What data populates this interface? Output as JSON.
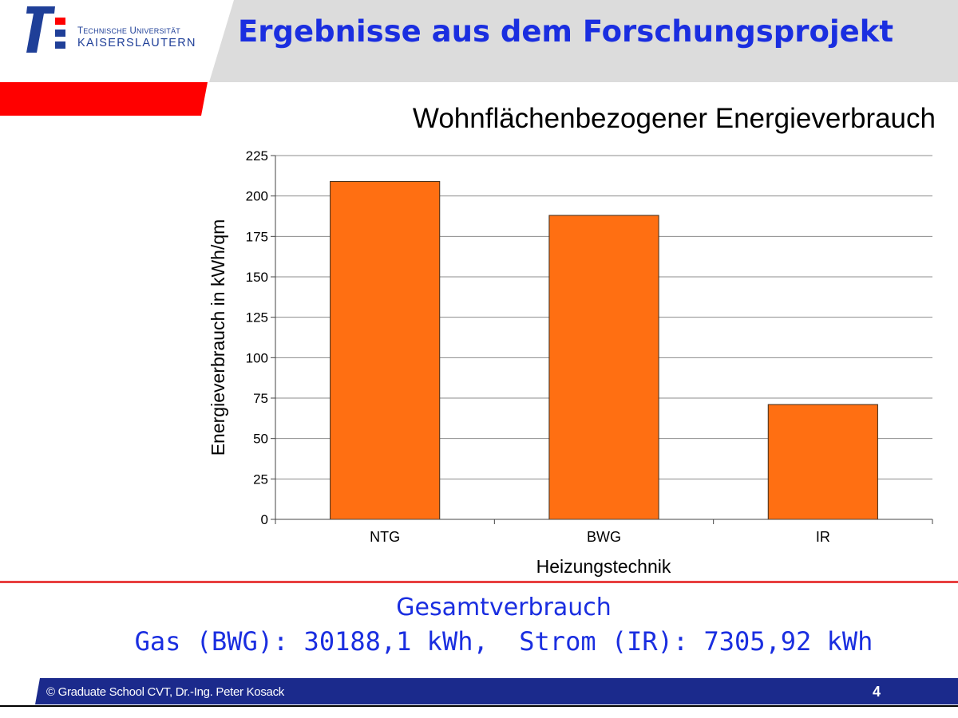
{
  "header": {
    "university_line1": "Technische Universität",
    "university_line2": "KAISERSLAUTERN",
    "slide_title": "Ergebnisse aus dem Forschungsprojekt"
  },
  "chart_data": {
    "type": "bar",
    "title": "Wohnflächenbezogener Energieverbrauch",
    "xlabel": "Heizungstechnik",
    "ylabel": "Energieverbrauch in kWh/qm",
    "categories": [
      "NTG",
      "BWG",
      "IR"
    ],
    "values": [
      209,
      188,
      71
    ],
    "ylim": [
      0,
      225
    ],
    "yticks": [
      0,
      25,
      50,
      75,
      100,
      125,
      150,
      175,
      200,
      225
    ],
    "grid": true,
    "legend": "none",
    "bar_color": "#ff6f12"
  },
  "summary": {
    "title": "Gesamtverbrauch",
    "line": "Gas (BWG): 30188,1 kWh,  Strom (IR): 7305,92 kWh"
  },
  "footer": {
    "copyright": "© Graduate School CVT, Dr.-Ing. Peter Kosack",
    "page_number": "4"
  },
  "colors": {
    "title_blue": "#1a2ee0",
    "footer_blue": "#1b2a8c",
    "accent_red": "#ff0000",
    "header_gray": "#dcdcdc"
  }
}
